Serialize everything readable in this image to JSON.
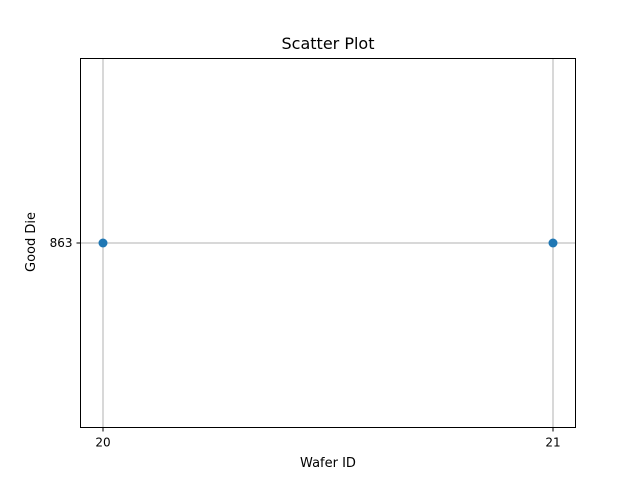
{
  "chart_data": {
    "type": "scatter",
    "title": "Scatter Plot",
    "xlabel": "Wafer ID",
    "ylabel": "Good Die",
    "x_ticks": [
      "20",
      "21"
    ],
    "y_ticks": [
      "863"
    ],
    "points": [
      {
        "x": 20,
        "y": 863
      },
      {
        "x": 21,
        "y": 863
      }
    ],
    "xlim": [
      19.95,
      21.05
    ],
    "ylim": [
      862.9,
      863.1
    ],
    "grid": true,
    "marker_color": "#1f77b4",
    "grid_color": "#b0b0b0"
  }
}
